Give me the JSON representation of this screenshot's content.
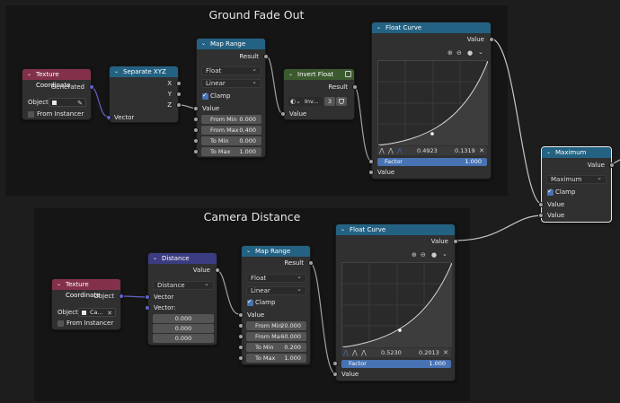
{
  "frames": {
    "ground": "Ground Fade Out",
    "camera": "Camera Distance"
  },
  "tex1": {
    "title": "Texture Coordinate",
    "out": "Generated",
    "obj_label": "Object:",
    "instancer": "From Instancer"
  },
  "sep": {
    "title": "Separate XYZ",
    "x": "X",
    "y": "Y",
    "z": "Z",
    "in": "Vector"
  },
  "map1": {
    "title": "Map Range",
    "out": "Result",
    "type": "Float",
    "interp": "Linear",
    "clamp": "Clamp",
    "value": "Value",
    "fmin_l": "From Min",
    "fmin_v": "0.000",
    "fmax_l": "From Max",
    "fmax_v": "0.400",
    "tmin_l": "To Min",
    "tmin_v": "0.000",
    "tmax_l": "To Max",
    "tmax_v": "1.000"
  },
  "inv": {
    "title": "Invert Float",
    "out": "Result",
    "sel": "Inv...",
    "users": "3",
    "value": "Value"
  },
  "curve1": {
    "title": "Float Curve",
    "out": "Value",
    "px": "0.4923",
    "py": "0.1319",
    "factor_l": "Factor",
    "factor_v": "1.000",
    "value": "Value"
  },
  "max": {
    "title": "Maximum",
    "out": "Value",
    "op": "Maximum",
    "clamp": "Clamp",
    "in1": "Value",
    "in2": "Value"
  },
  "tex2": {
    "title": "Texture Coordinate",
    "out": "Object",
    "obj_label": "Object:",
    "obj_val": "Ca...",
    "instancer": "From Instancer"
  },
  "dist": {
    "title": "Distance",
    "out": "Value",
    "op": "Distance",
    "in1": "Vector",
    "in2": "Vector:",
    "v1": "0.000",
    "v2": "0.000",
    "v3": "0.000"
  },
  "map2": {
    "title": "Map Range",
    "out": "Result",
    "type": "Float",
    "interp": "Linear",
    "clamp": "Clamp",
    "value": "Value",
    "fmin_l": "From Min",
    "fmin_v": "20.000",
    "fmax_l": "From Ma",
    "fmax_v": "60.000",
    "tmin_l": "To Min",
    "tmin_v": "0.200",
    "tmax_l": "To Max",
    "tmax_v": "1.000"
  },
  "curve2": {
    "title": "Float Curve",
    "out": "Value",
    "px": "0.5230",
    "py": "0.2013",
    "factor_l": "Factor",
    "factor_v": "1.000",
    "value": "Value"
  },
  "colors": {
    "input": "#83314a",
    "converter": "#246283",
    "vector": "#3c3c83",
    "color": "#3b5a2e",
    "accent": "#4772b3"
  }
}
